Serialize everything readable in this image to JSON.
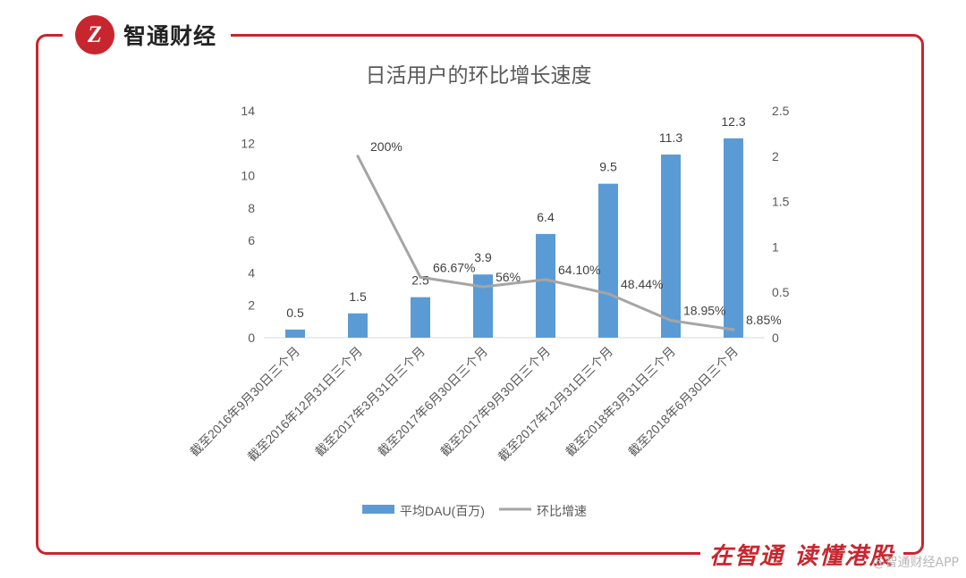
{
  "brand": {
    "logo_glyph": "Z",
    "name": "智通财经"
  },
  "slogan": "在智通 读懂港股",
  "watermark": "@智通财经APP",
  "colors": {
    "frame": "#c8262e",
    "bar": "#5b9bd5",
    "line": "#a5a5a5",
    "text": "#595959"
  },
  "chart_data": {
    "type": "bar",
    "title": "日活用户的环比增长速度",
    "categories": [
      "截至2016年9月30日三个月",
      "截至2016年12月31日三个月",
      "截至2017年3月31日三个月",
      "截至2017年6月30日三个月",
      "截至2017年9月30日三个月",
      "截至2017年12月31日三个月",
      "截至2018年3月31日三个月",
      "截至2018年6月30日三个月"
    ],
    "series": [
      {
        "name": "平均DAU(百万)",
        "type": "bar",
        "axis": "left",
        "values": [
          0.5,
          1.5,
          2.5,
          3.9,
          6.4,
          9.5,
          11.3,
          12.3
        ],
        "labels": [
          "0.5",
          "1.5",
          "2.5",
          "3.9",
          "6.4",
          "9.5",
          "11.3",
          "12.3"
        ]
      },
      {
        "name": "环比增速",
        "type": "line",
        "axis": "right",
        "values": [
          null,
          2.0,
          0.6667,
          0.56,
          0.641,
          0.4844,
          0.1895,
          0.0885
        ],
        "labels": [
          null,
          "200%",
          "66.67%",
          "56%",
          "64.10%",
          "48.44%",
          "18.95%",
          "8.85%"
        ]
      }
    ],
    "y_left": {
      "min": 0,
      "max": 14,
      "ticks": [
        "0",
        "2",
        "4",
        "6",
        "8",
        "10",
        "12",
        "14"
      ]
    },
    "y_right": {
      "min": 0,
      "max": 2.5,
      "ticks": [
        "0",
        "0.5",
        "1",
        "1.5",
        "2",
        "2.5"
      ]
    },
    "grid": false,
    "legend_position": "bottom"
  }
}
